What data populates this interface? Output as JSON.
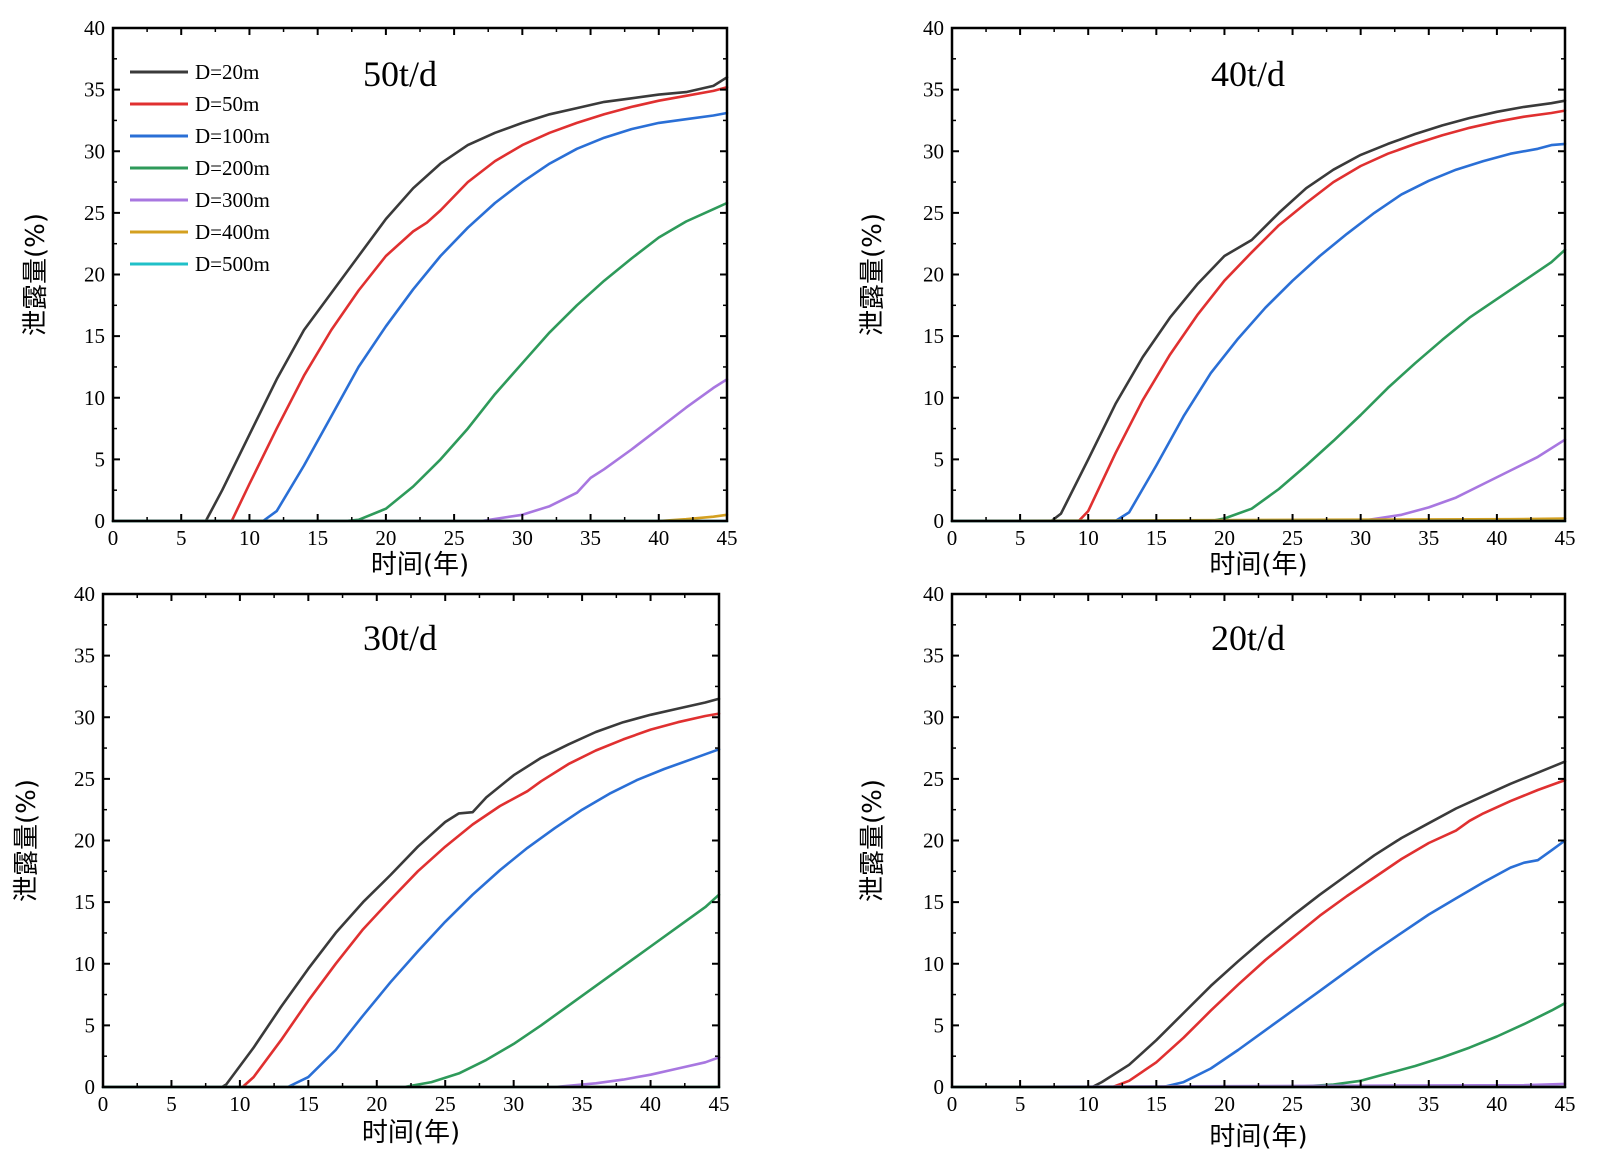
{
  "chart_data": [
    {
      "type": "line",
      "title": "50t/d",
      "xlabel": "时间(年)",
      "ylabel": "泄露量(%)",
      "xlim": [
        0,
        45
      ],
      "ylim": [
        0,
        40
      ],
      "xticks": [
        "0",
        "5",
        "10",
        "15",
        "20",
        "25",
        "30",
        "35",
        "40",
        "45"
      ],
      "yticks": [
        "0",
        "5",
        "10",
        "15",
        "20",
        "25",
        "30",
        "35",
        "40"
      ],
      "legend": "top-left",
      "series": [
        {
          "name": "D=20m",
          "color": "#3a3a3a",
          "x": [
            0,
            6.8,
            8,
            10,
            12,
            14,
            16,
            18,
            20,
            22,
            24,
            26,
            28,
            30,
            32,
            34,
            36,
            38,
            40,
            42,
            44,
            45
          ],
          "y": [
            0,
            0,
            2.5,
            7,
            11.5,
            15.5,
            18.5,
            21.5,
            24.5,
            27,
            29,
            30.5,
            31.5,
            32.3,
            33,
            33.5,
            34,
            34.3,
            34.6,
            34.8,
            35.3,
            36
          ]
        },
        {
          "name": "D=50m",
          "color": "#e03030",
          "x": [
            0,
            8.7,
            10,
            12,
            14,
            16,
            18,
            20,
            22,
            23,
            24,
            26,
            28,
            30,
            32,
            34,
            36,
            38,
            40,
            42,
            44,
            45
          ],
          "y": [
            0,
            0,
            3,
            7.5,
            11.8,
            15.5,
            18.7,
            21.5,
            23.5,
            24.2,
            25.2,
            27.5,
            29.2,
            30.5,
            31.5,
            32.3,
            33,
            33.6,
            34.1,
            34.5,
            34.9,
            35.2
          ]
        },
        {
          "name": "D=100m",
          "color": "#2a6fd6",
          "x": [
            0,
            11,
            12,
            14,
            16,
            18,
            20,
            22,
            24,
            26,
            28,
            30,
            32,
            34,
            36,
            38,
            40,
            42,
            44,
            45
          ],
          "y": [
            0,
            0,
            0.8,
            4.5,
            8.5,
            12.5,
            15.8,
            18.8,
            21.5,
            23.8,
            25.8,
            27.5,
            29,
            30.2,
            31.1,
            31.8,
            32.3,
            32.6,
            32.9,
            33.1
          ]
        },
        {
          "name": "D=200m",
          "color": "#2e9a5a",
          "x": [
            0,
            17,
            18,
            20,
            22,
            24,
            26,
            28,
            30,
            32,
            34,
            36,
            38,
            40,
            42,
            44,
            45
          ],
          "y": [
            0,
            0,
            0.1,
            1,
            2.8,
            5,
            7.5,
            10.3,
            12.8,
            15.3,
            17.5,
            19.5,
            21.3,
            23,
            24.3,
            25.3,
            25.8
          ]
        },
        {
          "name": "D=300m",
          "color": "#a877e0",
          "x": [
            0,
            27,
            30,
            32,
            34,
            35,
            36,
            38,
            40,
            42,
            44,
            45
          ],
          "y": [
            0,
            0,
            0.5,
            1.2,
            2.3,
            3.5,
            4.2,
            5.8,
            7.5,
            9.2,
            10.8,
            11.5
          ]
        },
        {
          "name": "D=400m",
          "color": "#d4a020",
          "x": [
            0,
            40,
            42,
            44,
            45
          ],
          "y": [
            0,
            0,
            0.15,
            0.35,
            0.5
          ]
        },
        {
          "name": "D=500m",
          "color": "#20c0c8",
          "x": [
            0,
            45
          ],
          "y": [
            0,
            0
          ]
        }
      ]
    },
    {
      "type": "line",
      "title": "40t/d",
      "xlabel": "时间(年)",
      "ylabel": "泄露量(%)",
      "xlim": [
        0,
        45
      ],
      "ylim": [
        0,
        40
      ],
      "xticks": [
        "0",
        "5",
        "10",
        "15",
        "20",
        "25",
        "30",
        "35",
        "40",
        "45"
      ],
      "yticks": [
        "0",
        "5",
        "10",
        "15",
        "20",
        "25",
        "30",
        "35",
        "40"
      ],
      "series": [
        {
          "name": "D=20m",
          "color": "#3a3a3a",
          "x": [
            0,
            7.3,
            8,
            10,
            12,
            14,
            16,
            18,
            20,
            22,
            24,
            26,
            28,
            30,
            32,
            34,
            36,
            38,
            40,
            42,
            44,
            45
          ],
          "y": [
            0,
            0,
            0.6,
            5,
            9.5,
            13.3,
            16.5,
            19.2,
            21.5,
            22.8,
            25,
            27,
            28.5,
            29.7,
            30.6,
            31.4,
            32.1,
            32.7,
            33.2,
            33.6,
            33.9,
            34.1
          ]
        },
        {
          "name": "D=50m",
          "color": "#e03030",
          "x": [
            0,
            9.3,
            10,
            12,
            14,
            16,
            18,
            20,
            22,
            24,
            26,
            28,
            30,
            32,
            34,
            36,
            38,
            40,
            42,
            44,
            45
          ],
          "y": [
            0,
            0,
            0.8,
            5.5,
            9.8,
            13.5,
            16.7,
            19.5,
            21.8,
            24,
            25.8,
            27.5,
            28.8,
            29.8,
            30.6,
            31.3,
            31.9,
            32.4,
            32.8,
            33.1,
            33.3
          ]
        },
        {
          "name": "D=100m",
          "color": "#2a6fd6",
          "x": [
            0,
            12,
            13,
            15,
            17,
            19,
            21,
            23,
            25,
            27,
            29,
            31,
            33,
            35,
            37,
            39,
            41,
            43,
            44,
            45
          ],
          "y": [
            0,
            0,
            0.7,
            4.5,
            8.5,
            12,
            14.8,
            17.3,
            19.5,
            21.5,
            23.3,
            25,
            26.5,
            27.6,
            28.5,
            29.2,
            29.8,
            30.2,
            30.5,
            30.6
          ]
        },
        {
          "name": "D=200m",
          "color": "#2e9a5a",
          "x": [
            0,
            19,
            20,
            22,
            24,
            26,
            28,
            30,
            32,
            34,
            36,
            38,
            40,
            42,
            44,
            45
          ],
          "y": [
            0,
            0,
            0.2,
            1,
            2.6,
            4.5,
            6.5,
            8.6,
            10.8,
            12.8,
            14.7,
            16.5,
            18,
            19.5,
            21,
            22
          ]
        },
        {
          "name": "D=300m",
          "color": "#a877e0",
          "x": [
            0,
            30,
            33,
            35,
            37,
            39,
            41,
            43,
            45
          ],
          "y": [
            0,
            0,
            0.5,
            1.1,
            1.9,
            3,
            4.1,
            5.2,
            6.6
          ]
        },
        {
          "name": "D=400m",
          "color": "#d4a020",
          "x": [
            0,
            41,
            45
          ],
          "y": [
            0,
            0.15,
            0.2
          ]
        },
        {
          "name": "D=500m",
          "color": "#20c0c8",
          "x": [
            0,
            45
          ],
          "y": [
            0,
            0
          ]
        }
      ]
    },
    {
      "type": "line",
      "title": "30t/d",
      "xlabel": "时间(年)",
      "ylabel": "泄露量(%)",
      "xlim": [
        0,
        45
      ],
      "ylim": [
        0,
        40
      ],
      "xticks": [
        "0",
        "5",
        "10",
        "15",
        "20",
        "25",
        "30",
        "35",
        "40",
        "45"
      ],
      "yticks": [
        "0",
        "5",
        "10",
        "15",
        "20",
        "25",
        "30",
        "35",
        "40"
      ],
      "series": [
        {
          "name": "D=20m",
          "color": "#3a3a3a",
          "x": [
            0,
            8.7,
            9,
            11,
            13,
            15,
            17,
            19,
            21,
            23,
            25,
            26,
            27,
            28,
            30,
            32,
            34,
            36,
            38,
            40,
            42,
            44,
            45
          ],
          "y": [
            0,
            0,
            0.2,
            3.2,
            6.5,
            9.6,
            12.5,
            15,
            17.2,
            19.5,
            21.5,
            22.2,
            22.3,
            23.5,
            25.3,
            26.7,
            27.8,
            28.8,
            29.6,
            30.2,
            30.7,
            31.2,
            31.5
          ]
        },
        {
          "name": "D=50m",
          "color": "#e03030",
          "x": [
            0,
            10.2,
            11,
            13,
            15,
            17,
            19,
            21,
            23,
            25,
            27,
            29,
            31,
            32,
            34,
            36,
            38,
            40,
            42,
            44,
            45
          ],
          "y": [
            0,
            0,
            0.8,
            3.8,
            7,
            10,
            12.8,
            15.2,
            17.5,
            19.5,
            21.3,
            22.8,
            24,
            24.8,
            26.2,
            27.3,
            28.2,
            29,
            29.6,
            30.1,
            30.3
          ]
        },
        {
          "name": "D=100m",
          "color": "#2a6fd6",
          "x": [
            0,
            13.5,
            15,
            17,
            19,
            21,
            23,
            25,
            27,
            29,
            31,
            33,
            35,
            37,
            39,
            41,
            43,
            45
          ],
          "y": [
            0,
            0,
            0.8,
            3,
            5.8,
            8.5,
            11,
            13.4,
            15.6,
            17.6,
            19.4,
            21,
            22.5,
            23.8,
            24.9,
            25.8,
            26.6,
            27.4
          ]
        },
        {
          "name": "D=200m",
          "color": "#2e9a5a",
          "x": [
            0,
            22,
            24,
            26,
            28,
            30,
            32,
            34,
            36,
            38,
            40,
            42,
            44,
            45
          ],
          "y": [
            0,
            0,
            0.4,
            1.1,
            2.2,
            3.5,
            5,
            6.6,
            8.2,
            9.8,
            11.4,
            13,
            14.6,
            15.6
          ]
        },
        {
          "name": "D=300m",
          "color": "#a877e0",
          "x": [
            0,
            33,
            36,
            38,
            40,
            42,
            44,
            45
          ],
          "y": [
            0,
            0,
            0.3,
            0.6,
            1,
            1.5,
            2,
            2.4
          ]
        },
        {
          "name": "D=400m",
          "color": "#d4a020",
          "x": [
            0,
            45
          ],
          "y": [
            0,
            0
          ]
        },
        {
          "name": "D=500m",
          "color": "#20c0c8",
          "x": [
            0,
            45
          ],
          "y": [
            0,
            0
          ]
        }
      ]
    },
    {
      "type": "line",
      "title": "20t/d",
      "xlabel": "时间(年)",
      "ylabel": "泄露量(%)",
      "xlim": [
        0,
        45
      ],
      "ylim": [
        0,
        40
      ],
      "xticks": [
        "0",
        "5",
        "10",
        "15",
        "20",
        "25",
        "30",
        "35",
        "40",
        "45"
      ],
      "yticks": [
        "0",
        "5",
        "10",
        "15",
        "20",
        "25",
        "30",
        "35",
        "40"
      ],
      "series": [
        {
          "name": "D=20m",
          "color": "#3a3a3a",
          "x": [
            0,
            10.3,
            11,
            13,
            15,
            17,
            19,
            21,
            23,
            25,
            27,
            29,
            31,
            33,
            35,
            37,
            39,
            41,
            43,
            45
          ],
          "y": [
            0,
            0,
            0.4,
            1.8,
            3.8,
            6,
            8.2,
            10.2,
            12.1,
            13.9,
            15.6,
            17.2,
            18.8,
            20.2,
            21.4,
            22.6,
            23.6,
            24.6,
            25.5,
            26.4
          ]
        },
        {
          "name": "D=50m",
          "color": "#e03030",
          "x": [
            0,
            11.8,
            13,
            15,
            17,
            19,
            21,
            23,
            25,
            27,
            29,
            31,
            33,
            35,
            37,
            38,
            39,
            41,
            43,
            45
          ],
          "y": [
            0,
            0,
            0.5,
            2,
            4,
            6.2,
            8.3,
            10.3,
            12.1,
            13.9,
            15.5,
            17,
            18.5,
            19.8,
            20.8,
            21.6,
            22.2,
            23.2,
            24.1,
            24.9
          ]
        },
        {
          "name": "D=100m",
          "color": "#2a6fd6",
          "x": [
            0,
            15.5,
            17,
            19,
            21,
            23,
            25,
            27,
            29,
            31,
            33,
            35,
            37,
            39,
            41,
            42,
            43,
            44,
            45
          ],
          "y": [
            0,
            0,
            0.4,
            1.5,
            3,
            4.6,
            6.2,
            7.8,
            9.4,
            11,
            12.5,
            14,
            15.3,
            16.6,
            17.8,
            18.2,
            18.4,
            19.2,
            20
          ]
        },
        {
          "name": "D=200m",
          "color": "#2e9a5a",
          "x": [
            0,
            25,
            28,
            30,
            32,
            34,
            36,
            38,
            40,
            42,
            44,
            45
          ],
          "y": [
            0,
            0,
            0.2,
            0.5,
            1.1,
            1.7,
            2.4,
            3.2,
            4.1,
            5.1,
            6.2,
            6.8
          ]
        },
        {
          "name": "D=300m",
          "color": "#a877e0",
          "x": [
            0,
            42,
            45
          ],
          "y": [
            0,
            0.15,
            0.25
          ]
        },
        {
          "name": "D=400m",
          "color": "#d4a020",
          "x": [
            0,
            45
          ],
          "y": [
            0,
            0
          ]
        },
        {
          "name": "D=500m",
          "color": "#20c0c8",
          "x": [
            0,
            45
          ],
          "y": [
            0,
            0
          ]
        }
      ]
    }
  ]
}
